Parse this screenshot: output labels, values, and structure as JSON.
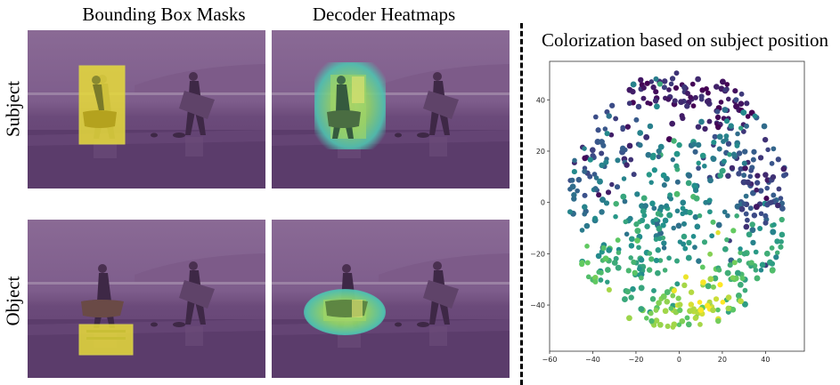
{
  "columns": {
    "bbox_title": "Bounding Box Masks",
    "heatmap_title": "Decoder Heatmaps"
  },
  "rows": {
    "subject_label": "Subject",
    "object_label": "Object"
  },
  "colors": {
    "purple_overlay": "#6a3f7c",
    "mask_yellow": "#e8dc3a",
    "heat_cyan": "#4fc3b0",
    "heat_green": "#8fd36a"
  },
  "chart_data": {
    "type": "scatter",
    "title": "Colorization based on subject position",
    "xlabel": "",
    "ylabel": "",
    "xlim": [
      -60,
      58
    ],
    "ylim": [
      -58,
      55
    ],
    "xticks": [
      -60,
      -40,
      -20,
      0,
      20,
      40
    ],
    "yticks": [
      40,
      20,
      0,
      -20,
      -40
    ],
    "colormap": "viridis",
    "grid": false,
    "clusters": [
      {
        "cx": -2,
        "cy": 43,
        "sx": 12,
        "sy": 6,
        "n": 70,
        "c": 0.1
      },
      {
        "cx": 22,
        "cy": 40,
        "sx": 8,
        "sy": 8,
        "n": 40,
        "c": 0.05
      },
      {
        "cx": -35,
        "cy": 25,
        "sx": 10,
        "sy": 10,
        "n": 60,
        "c": 0.25
      },
      {
        "cx": 30,
        "cy": 18,
        "sx": 10,
        "sy": 10,
        "n": 60,
        "c": 0.3
      },
      {
        "cx": -45,
        "cy": 5,
        "sx": 8,
        "sy": 10,
        "n": 50,
        "c": 0.35
      },
      {
        "cx": 40,
        "cy": 3,
        "sx": 10,
        "sy": 10,
        "n": 55,
        "c": 0.2
      },
      {
        "cx": 0,
        "cy": 10,
        "sx": 14,
        "sy": 12,
        "n": 90,
        "c": 0.45
      },
      {
        "cx": -10,
        "cy": -10,
        "sx": 15,
        "sy": 8,
        "n": 70,
        "c": 0.5
      },
      {
        "cx": -45,
        "cy": -25,
        "sx": 8,
        "sy": 8,
        "n": 45,
        "c": 0.72
      },
      {
        "cx": 30,
        "cy": -25,
        "sx": 10,
        "sy": 8,
        "n": 55,
        "c": 0.68
      },
      {
        "cx": -20,
        "cy": -30,
        "sx": 10,
        "sy": 8,
        "n": 45,
        "c": 0.62
      },
      {
        "cx": -2,
        "cy": -42,
        "sx": 10,
        "sy": 6,
        "n": 55,
        "c": 0.8
      },
      {
        "cx": 15,
        "cy": -38,
        "sx": 8,
        "sy": 6,
        "n": 30,
        "c": 0.9
      },
      {
        "cx": 45,
        "cy": -22,
        "sx": 6,
        "sy": 8,
        "n": 30,
        "c": 0.55
      }
    ]
  }
}
